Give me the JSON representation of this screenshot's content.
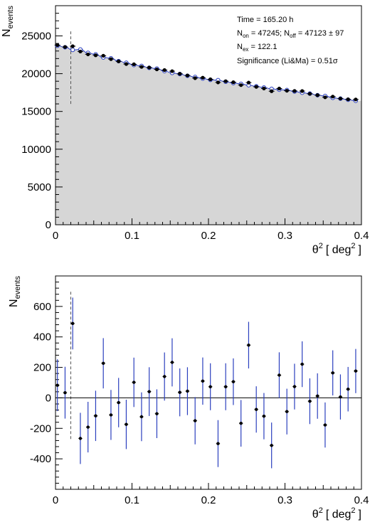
{
  "chart_data": [
    {
      "type": "line",
      "ylabel": "N",
      "ylabel_sub": "events",
      "xlabel_main": "θ",
      "xlabel_sup": "2",
      "xlabel_unit": "[ deg",
      "xlabel_unit_sup": "2",
      "xlabel_close": "]",
      "xlim": [
        0,
        0.4
      ],
      "ylim": [
        0,
        29000
      ],
      "x_ticks": [
        0,
        0.1,
        0.2,
        0.3,
        0.4
      ],
      "x_tick_labels": [
        "0",
        "0.1",
        "0.2",
        "0.3",
        "0.4"
      ],
      "y_ticks": [
        0,
        5000,
        10000,
        15000,
        20000,
        25000
      ],
      "y_tick_labels": [
        "0",
        "5000",
        "10000",
        "15000",
        "20000",
        "25000"
      ],
      "cut_line_x": 0.02,
      "cut_line_range": [
        16000,
        25800
      ],
      "annotations": {
        "time": "Time = 165.20 h",
        "non_prefix": "N",
        "non_sub": "on",
        "non_mid": " = 47245; N",
        "noff_sub": "off",
        "noff_rest": " = 47123 ± 97",
        "nex_prefix": "N",
        "nex_sub": "ex",
        "nex_rest": " = 122.1",
        "significance": "Significance (Li&Ma) = 0.51σ"
      },
      "series": [
        {
          "role": "on",
          "x": [
            0.0025,
            0.0125,
            0.0225,
            0.0325,
            0.0425,
            0.0525,
            0.0625,
            0.0725,
            0.0825,
            0.0925,
            0.1025,
            0.1125,
            0.1225,
            0.1325,
            0.1425,
            0.1525,
            0.1625,
            0.1725,
            0.1825,
            0.1925,
            0.2025,
            0.2125,
            0.2225,
            0.2325,
            0.2425,
            0.2525,
            0.2625,
            0.2725,
            0.2825,
            0.2925,
            0.3025,
            0.3125,
            0.3225,
            0.3325,
            0.3425,
            0.3525,
            0.3625,
            0.3725,
            0.3825,
            0.3925
          ],
          "values": [
            23783,
            23534,
            23638,
            22934,
            22558,
            22432,
            22377,
            21928,
            21629,
            21276,
            21242,
            20896,
            20811,
            20566,
            20480,
            20333,
            19986,
            19764,
            19410,
            19470,
            19253,
            18840,
            19003,
            18866,
            18483,
            18816,
            18254,
            18040,
            17678,
            18029,
            17740,
            17714,
            17701,
            17338,
            17162,
            16872,
            16964,
            16706,
            16607,
            16586
          ]
        },
        {
          "role": "off",
          "x": [
            0.0025,
            0.0125,
            0.0225,
            0.0325,
            0.0425,
            0.0525,
            0.0625,
            0.0725,
            0.0825,
            0.0925,
            0.1025,
            0.1125,
            0.1225,
            0.1325,
            0.1425,
            0.1525,
            0.1625,
            0.1725,
            0.1825,
            0.1925,
            0.2025,
            0.2125,
            0.2225,
            0.2325,
            0.2425,
            0.2525,
            0.2625,
            0.2725,
            0.2825,
            0.2925,
            0.3025,
            0.3125,
            0.3225,
            0.3325,
            0.3425,
            0.3525,
            0.3625,
            0.3725,
            0.3825,
            0.3925
          ],
          "values": [
            23700,
            23500,
            23150,
            23200,
            22750,
            22550,
            22150,
            22040,
            21660,
            21450,
            21140,
            21020,
            20770,
            20670,
            20340,
            20100,
            19950,
            19720,
            19560,
            19360,
            19180,
            19140,
            18930,
            18760,
            18650,
            18470,
            18330,
            18160,
            17990,
            17880,
            17830,
            17640,
            17480,
            17360,
            17150,
            17050,
            16800,
            16700,
            16550,
            16410
          ]
        }
      ]
    },
    {
      "type": "scatter",
      "ylabel": "N",
      "ylabel_sub": "events",
      "xlabel_main": "θ",
      "xlabel_sup": "2",
      "xlabel_unit": "[ deg",
      "xlabel_unit_sup": "2",
      "xlabel_close": "]",
      "xlim": [
        0,
        0.4
      ],
      "ylim": [
        -600,
        800
      ],
      "x_ticks": [
        0,
        0.1,
        0.2,
        0.3,
        0.4
      ],
      "x_tick_labels": [
        "0",
        "0.1",
        "0.2",
        "0.3",
        "0.4"
      ],
      "y_ticks": [
        -400,
        -200,
        0,
        200,
        400,
        600
      ],
      "y_tick_labels": [
        "-400",
        "-200",
        "0",
        "200",
        "400",
        "600"
      ],
      "cut_line_x": 0.02,
      "cut_line_range": [
        -270,
        710
      ],
      "series": [
        {
          "role": "excess",
          "x": [
            0.0025,
            0.0125,
            0.0225,
            0.0325,
            0.0425,
            0.0525,
            0.0625,
            0.0725,
            0.0825,
            0.0925,
            0.1025,
            0.1125,
            0.1225,
            0.1325,
            0.1425,
            0.1525,
            0.1625,
            0.1725,
            0.1825,
            0.1925,
            0.2025,
            0.2125,
            0.2225,
            0.2325,
            0.2425,
            0.2525,
            0.2625,
            0.2725,
            0.2825,
            0.2925,
            0.3025,
            0.3125,
            0.3225,
            0.3325,
            0.3425,
            0.3525,
            0.3625,
            0.3725,
            0.3825,
            0.3925
          ],
          "values": [
            83,
            34,
            488,
            -266,
            -192,
            -118,
            227,
            -112,
            -31,
            -174,
            102,
            -124,
            41,
            -104,
            140,
            233,
            36,
            44,
            -150,
            110,
            73,
            -300,
            73,
            106,
            -167,
            346,
            -76,
            -120,
            -312,
            149,
            -90,
            74,
            221,
            -22,
            12,
            -178,
            164,
            6,
            57,
            176
          ],
          "errors": [
            170,
            170,
            170,
            168,
            166,
            165,
            165,
            164,
            162,
            162,
            162,
            160,
            160,
            160,
            158,
            158,
            157,
            157,
            155,
            155,
            154,
            154,
            154,
            153,
            153,
            153,
            152,
            152,
            150,
            150,
            150,
            150,
            150,
            150,
            149,
            148,
            148,
            148,
            146,
            145
          ]
        }
      ]
    }
  ]
}
